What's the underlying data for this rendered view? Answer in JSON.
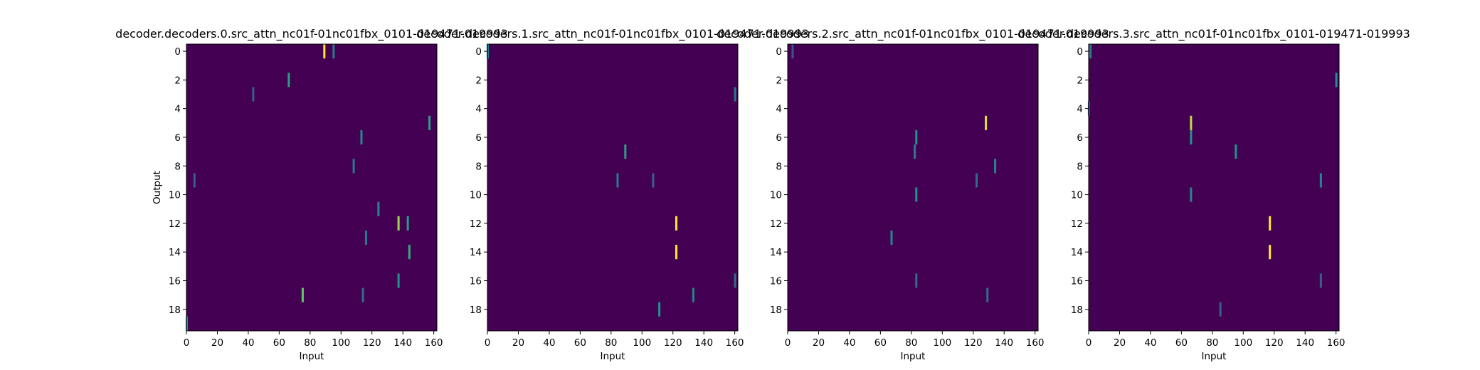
{
  "figure": {
    "background": "#ffffff",
    "colormap": [
      "#440154",
      "#3b528b",
      "#21918c",
      "#5ec962",
      "#fde725"
    ]
  },
  "chart_data": [
    {
      "type": "heatmap",
      "title": "decoder.decoders.0.src_attn_nc01f-01nc01fbx_0101-019471-019993",
      "xlabel": "Input",
      "ylabel": "Output",
      "n_rows": 20,
      "n_cols": 162,
      "xlim": [
        0,
        162
      ],
      "ylim": [
        19.5,
        -0.5
      ],
      "xticks": [
        0,
        20,
        40,
        60,
        80,
        100,
        120,
        140,
        160
      ],
      "yticks": [
        0,
        2,
        4,
        6,
        8,
        10,
        12,
        14,
        16,
        18
      ],
      "background_value": 0.0,
      "hot_cells": [
        {
          "row": 0,
          "col": 89,
          "value": 1.0
        },
        {
          "row": 0,
          "col": 95,
          "value": 0.4
        },
        {
          "row": 2,
          "col": 66,
          "value": 0.55
        },
        {
          "row": 3,
          "col": 43,
          "value": 0.3
        },
        {
          "row": 5,
          "col": 157,
          "value": 0.55
        },
        {
          "row": 6,
          "col": 113,
          "value": 0.45
        },
        {
          "row": 8,
          "col": 108,
          "value": 0.4
        },
        {
          "row": 9,
          "col": 5,
          "value": 0.3
        },
        {
          "row": 11,
          "col": 124,
          "value": 0.45
        },
        {
          "row": 12,
          "col": 137,
          "value": 0.85
        },
        {
          "row": 12,
          "col": 143,
          "value": 0.55
        },
        {
          "row": 13,
          "col": 116,
          "value": 0.4
        },
        {
          "row": 14,
          "col": 144,
          "value": 0.6
        },
        {
          "row": 16,
          "col": 137,
          "value": 0.5
        },
        {
          "row": 17,
          "col": 75,
          "value": 0.75
        },
        {
          "row": 17,
          "col": 114,
          "value": 0.35
        },
        {
          "row": 19,
          "col": 0,
          "value": 0.55
        }
      ]
    },
    {
      "type": "heatmap",
      "title": "decoder.decoders.1.src_attn_nc01f-01nc01fbx_0101-019471-019993",
      "xlabel": "Input",
      "ylabel": "",
      "n_rows": 20,
      "n_cols": 162,
      "xlim": [
        0,
        162
      ],
      "ylim": [
        19.5,
        -0.5
      ],
      "xticks": [
        0,
        20,
        40,
        60,
        80,
        100,
        120,
        140,
        160
      ],
      "yticks": [
        0,
        2,
        4,
        6,
        8,
        10,
        12,
        14,
        16,
        18
      ],
      "background_value": 0.0,
      "hot_cells": [
        {
          "row": 0,
          "col": 0,
          "value": 0.45
        },
        {
          "row": 3,
          "col": 160,
          "value": 0.4
        },
        {
          "row": 7,
          "col": 89,
          "value": 0.55
        },
        {
          "row": 9,
          "col": 84,
          "value": 0.4
        },
        {
          "row": 9,
          "col": 107,
          "value": 0.3
        },
        {
          "row": 12,
          "col": 122,
          "value": 1.0
        },
        {
          "row": 14,
          "col": 122,
          "value": 1.0
        },
        {
          "row": 16,
          "col": 160,
          "value": 0.35
        },
        {
          "row": 17,
          "col": 133,
          "value": 0.45
        },
        {
          "row": 18,
          "col": 111,
          "value": 0.5
        }
      ]
    },
    {
      "type": "heatmap",
      "title": "decoder.decoders.2.src_attn_nc01f-01nc01fbx_0101-019471-019993",
      "xlabel": "Input",
      "ylabel": "",
      "n_rows": 20,
      "n_cols": 162,
      "xlim": [
        0,
        162
      ],
      "ylim": [
        19.5,
        -0.5
      ],
      "xticks": [
        0,
        20,
        40,
        60,
        80,
        100,
        120,
        140,
        160
      ],
      "yticks": [
        0,
        2,
        4,
        6,
        8,
        10,
        12,
        14,
        16,
        18
      ],
      "background_value": 0.0,
      "hot_cells": [
        {
          "row": 0,
          "col": 3,
          "value": 0.25
        },
        {
          "row": 5,
          "col": 128,
          "value": 0.95
        },
        {
          "row": 6,
          "col": 83,
          "value": 0.5
        },
        {
          "row": 7,
          "col": 82,
          "value": 0.4
        },
        {
          "row": 8,
          "col": 134,
          "value": 0.45
        },
        {
          "row": 9,
          "col": 122,
          "value": 0.35
        },
        {
          "row": 10,
          "col": 83,
          "value": 0.5
        },
        {
          "row": 13,
          "col": 67,
          "value": 0.45
        },
        {
          "row": 16,
          "col": 83,
          "value": 0.35
        },
        {
          "row": 17,
          "col": 129,
          "value": 0.35
        }
      ]
    },
    {
      "type": "heatmap",
      "title": "decoder.decoders.3.src_attn_nc01f-01nc01fbx_0101-019471-019993",
      "xlabel": "Input",
      "ylabel": "",
      "n_rows": 20,
      "n_cols": 162,
      "xlim": [
        0,
        162
      ],
      "ylim": [
        19.5,
        -0.5
      ],
      "xticks": [
        0,
        20,
        40,
        60,
        80,
        100,
        120,
        140,
        160
      ],
      "yticks": [
        0,
        2,
        4,
        6,
        8,
        10,
        12,
        14,
        16,
        18
      ],
      "background_value": 0.0,
      "hot_cells": [
        {
          "row": 0,
          "col": 1,
          "value": 0.4
        },
        {
          "row": 2,
          "col": 160,
          "value": 0.5
        },
        {
          "row": 4,
          "col": 0,
          "value": 0.3
        },
        {
          "row": 5,
          "col": 66,
          "value": 0.9
        },
        {
          "row": 6,
          "col": 66,
          "value": 0.5
        },
        {
          "row": 7,
          "col": 95,
          "value": 0.5
        },
        {
          "row": 9,
          "col": 150,
          "value": 0.45
        },
        {
          "row": 10,
          "col": 66,
          "value": 0.45
        },
        {
          "row": 12,
          "col": 117,
          "value": 1.0
        },
        {
          "row": 14,
          "col": 117,
          "value": 1.0
        },
        {
          "row": 16,
          "col": 150,
          "value": 0.3
        },
        {
          "row": 18,
          "col": 85,
          "value": 0.3
        }
      ]
    }
  ]
}
